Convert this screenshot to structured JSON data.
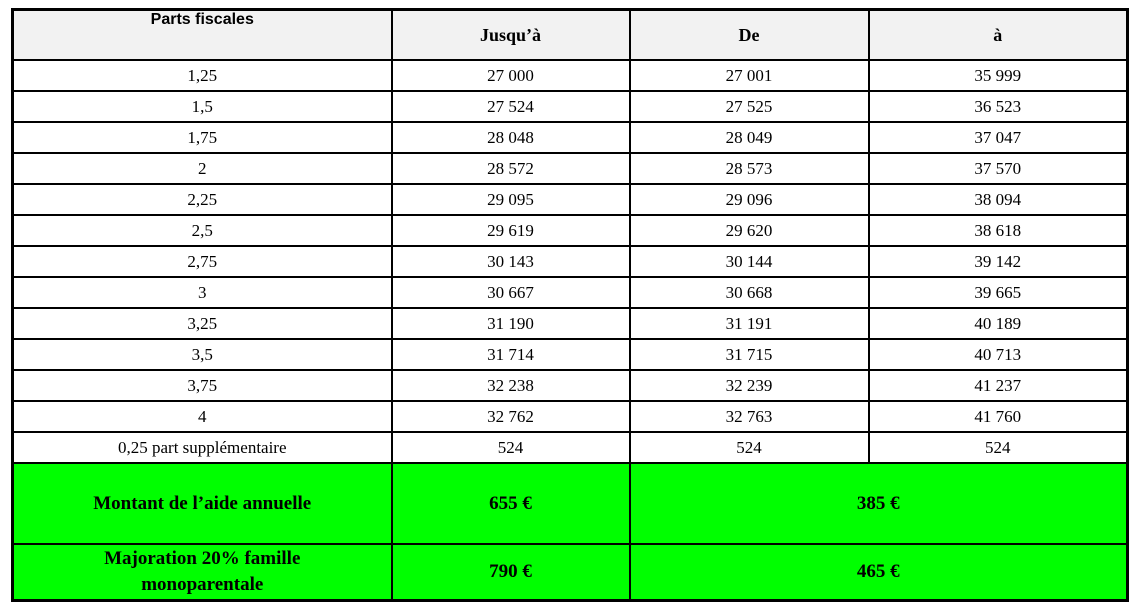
{
  "table": {
    "header": {
      "parts_fiscales": "Parts fiscales",
      "jusqua": "Jusqu’à",
      "de": "De",
      "a": "à"
    },
    "rows": [
      [
        "1,25",
        "27 000",
        "27 001",
        "35 999"
      ],
      [
        "1,5",
        "27 524",
        "27 525",
        "36 523"
      ],
      [
        "1,75",
        "28 048",
        "28 049",
        "37 047"
      ],
      [
        "2",
        "28 572",
        "28 573",
        "37 570"
      ],
      [
        "2,25",
        "29 095",
        "29 096",
        "38 094"
      ],
      [
        "2,5",
        "29 619",
        "29 620",
        "38 618"
      ],
      [
        "2,75",
        "30 143",
        "30 144",
        "39 142"
      ],
      [
        "3",
        "30 667",
        "30 668",
        "39 665"
      ],
      [
        "3,25",
        "31 190",
        "31 191",
        "40 189"
      ],
      [
        "3,5",
        "31 714",
        "31 715",
        "40 713"
      ],
      [
        "3,75",
        "32 238",
        "32 239",
        "41 237"
      ],
      [
        "4",
        "32 762",
        "32 763",
        "41 760"
      ],
      [
        "0,25 part supplémentaire",
        "524",
        "524",
        "524"
      ]
    ],
    "summary_rows": [
      {
        "label": "Montant de l’aide annuelle",
        "amount_jusqua": "655 €",
        "amount_de_a": "385 €"
      },
      {
        "label": "Majoration 20% famille monoparentale",
        "amount_jusqua": "790 €",
        "amount_de_a": "465 €"
      }
    ],
    "colors": {
      "summary_bg": "#00ff00",
      "header_bg": "#f2f2f2",
      "border": "#000000"
    }
  }
}
